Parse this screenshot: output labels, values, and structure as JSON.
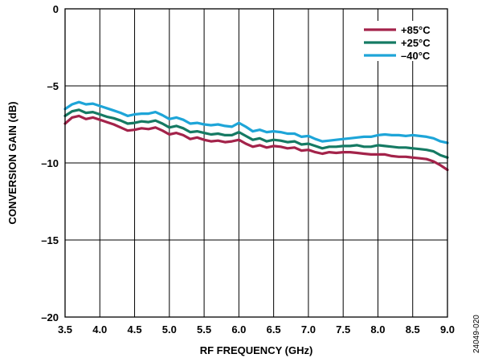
{
  "chart_data": {
    "type": "line",
    "xlabel": "RF FREQUENCY (GHz)",
    "ylabel": "CONVERSION GAIN (dB)",
    "xlim": [
      3.5,
      9.0
    ],
    "ylim": [
      -20,
      0
    ],
    "xticks": [
      "3.5",
      "4.0",
      "4.5",
      "5.0",
      "5.5",
      "6.0",
      "6.5",
      "7.0",
      "7.5",
      "8.0",
      "8.5",
      "9.0"
    ],
    "yticks": [
      "0",
      "–5",
      "–10",
      "–15",
      "–20"
    ],
    "grid": true,
    "legend_position": "top-right",
    "figure_id": "24049-020",
    "x": [
      3.5,
      3.6,
      3.7,
      3.8,
      3.9,
      4.0,
      4.1,
      4.2,
      4.3,
      4.4,
      4.5,
      4.6,
      4.7,
      4.8,
      4.9,
      5.0,
      5.1,
      5.2,
      5.3,
      5.4,
      5.5,
      5.6,
      5.7,
      5.8,
      5.9,
      6.0,
      6.1,
      6.2,
      6.3,
      6.4,
      6.5,
      6.6,
      6.7,
      6.8,
      6.9,
      7.0,
      7.1,
      7.2,
      7.3,
      7.4,
      7.5,
      7.6,
      7.7,
      7.8,
      7.9,
      8.0,
      8.1,
      8.2,
      8.3,
      8.4,
      8.5,
      8.6,
      8.7,
      8.8,
      8.9,
      9.0
    ],
    "series": [
      {
        "name": "+85°C",
        "color": "#a3234a",
        "values": [
          -7.45,
          -7.05,
          -6.95,
          -7.15,
          -7.05,
          -7.2,
          -7.35,
          -7.5,
          -7.7,
          -7.9,
          -7.85,
          -7.75,
          -7.8,
          -7.7,
          -7.9,
          -8.15,
          -8.05,
          -8.2,
          -8.45,
          -8.35,
          -8.5,
          -8.6,
          -8.55,
          -8.65,
          -8.6,
          -8.5,
          -8.75,
          -8.95,
          -8.85,
          -9.0,
          -8.9,
          -8.95,
          -9.05,
          -9.0,
          -9.2,
          -9.15,
          -9.3,
          -9.4,
          -9.3,
          -9.35,
          -9.3,
          -9.3,
          -9.35,
          -9.4,
          -9.45,
          -9.45,
          -9.45,
          -9.55,
          -9.6,
          -9.6,
          -9.65,
          -9.7,
          -9.75,
          -9.9,
          -10.15,
          -10.45
        ]
      },
      {
        "name": "+25°C",
        "color": "#157a63",
        "values": [
          -6.95,
          -6.65,
          -6.55,
          -6.75,
          -6.7,
          -6.85,
          -7.0,
          -7.1,
          -7.25,
          -7.45,
          -7.4,
          -7.3,
          -7.35,
          -7.25,
          -7.45,
          -7.7,
          -7.6,
          -7.75,
          -8.0,
          -7.95,
          -8.05,
          -8.15,
          -8.1,
          -8.2,
          -8.2,
          -8.0,
          -8.25,
          -8.5,
          -8.4,
          -8.6,
          -8.5,
          -8.55,
          -8.65,
          -8.6,
          -8.8,
          -8.75,
          -8.9,
          -9.05,
          -8.95,
          -8.95,
          -8.9,
          -8.9,
          -8.85,
          -8.95,
          -8.95,
          -8.85,
          -8.9,
          -8.95,
          -9.0,
          -9.0,
          -9.05,
          -9.1,
          -9.15,
          -9.25,
          -9.5,
          -9.65
        ]
      },
      {
        "name": "–40°C",
        "color": "#1ea5d8",
        "values": [
          -6.5,
          -6.2,
          -6.05,
          -6.2,
          -6.15,
          -6.3,
          -6.45,
          -6.6,
          -6.75,
          -6.95,
          -6.85,
          -6.8,
          -6.8,
          -6.7,
          -6.9,
          -7.15,
          -7.05,
          -7.2,
          -7.45,
          -7.4,
          -7.5,
          -7.55,
          -7.5,
          -7.6,
          -7.65,
          -7.4,
          -7.65,
          -7.95,
          -7.85,
          -8.0,
          -7.95,
          -8.0,
          -8.1,
          -8.1,
          -8.3,
          -8.25,
          -8.45,
          -8.6,
          -8.55,
          -8.5,
          -8.45,
          -8.4,
          -8.35,
          -8.3,
          -8.3,
          -8.2,
          -8.15,
          -8.2,
          -8.2,
          -8.25,
          -8.2,
          -8.25,
          -8.3,
          -8.4,
          -8.6,
          -8.7
        ]
      }
    ]
  }
}
